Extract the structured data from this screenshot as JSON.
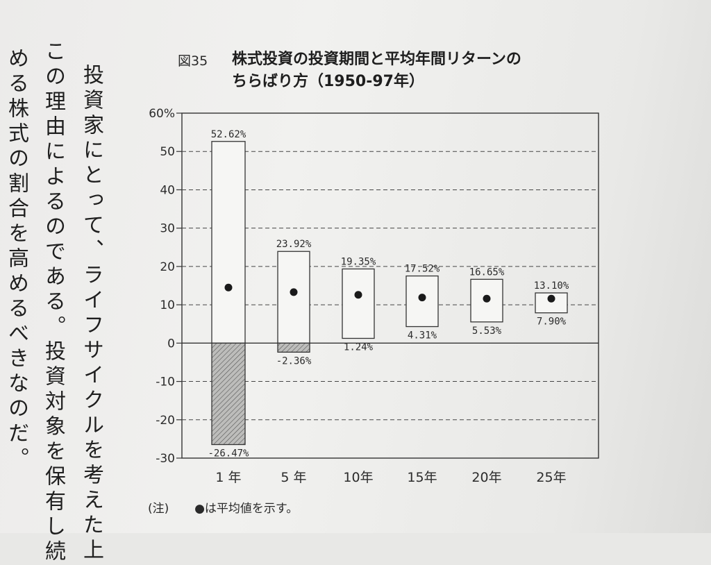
{
  "body_text": {
    "columns": [
      "める株式の割合を高めるべきなのだ。",
      "この理由によるのである。投資対象を保有し続",
      "投資家にとって、ライフサイクルを考えた上"
    ]
  },
  "figure": {
    "number": "図35",
    "title_line1": "株式投資の投資期間と平均年間リターンの",
    "title_line2": "ちらばり方（1950-97年）",
    "note_marker": "(注)",
    "note_text": "●は平均値を示す。"
  },
  "chart_data": {
    "type": "range",
    "title": "株式投資の投資期間と平均年間リターンのちらばり方（1950-97年）",
    "categories": [
      "1 年",
      "5 年",
      "10年",
      "15年",
      "20年",
      "25年"
    ],
    "max": [
      52.62,
      23.92,
      19.35,
      17.52,
      16.65,
      13.1
    ],
    "min": [
      -26.47,
      -2.36,
      1.24,
      4.31,
      5.53,
      7.9
    ],
    "max_labels": [
      "52.62%",
      "23.92%",
      "19.35%",
      "17.52%",
      "16.65%",
      "13.10%"
    ],
    "min_labels": [
      "-26.47%",
      "-2.36%",
      "1.24%",
      "4.31%",
      "5.53%",
      "7.90%"
    ],
    "mean": [
      14.5,
      13.3,
      12.6,
      11.9,
      11.6,
      11.6
    ],
    "yticks": [
      -30,
      -20,
      -10,
      0,
      10,
      20,
      30,
      40,
      50,
      60
    ],
    "ytick_labels": [
      "-30",
      "-20",
      "-10",
      "0",
      "10",
      "20",
      "30",
      "40",
      "50",
      "60%"
    ],
    "ylim": [
      -30,
      60
    ],
    "grid": "dashed",
    "negative_fill": "hatched",
    "mean_marker": "filled-circle"
  }
}
